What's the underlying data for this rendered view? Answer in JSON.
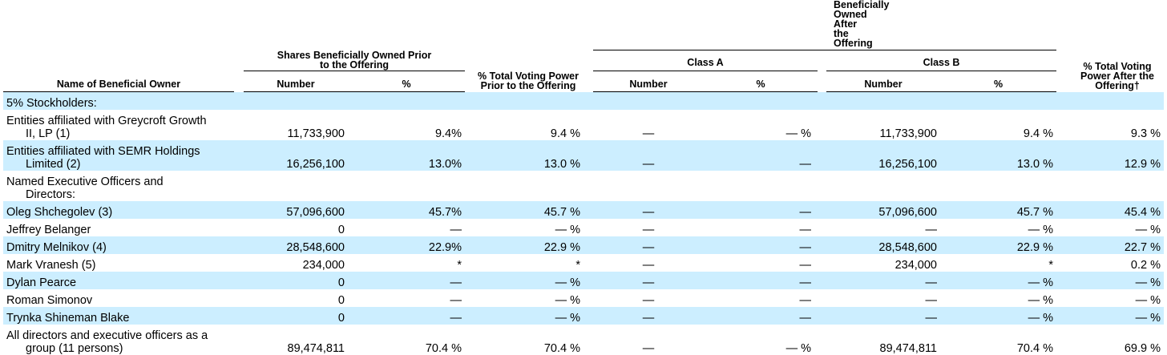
{
  "header": {
    "name_col": "Name of Beneficial Owner",
    "prior_group": "Shares Beneficially Owned Prior to the Offering",
    "prior_number": "Number",
    "prior_pct": "%",
    "voting_prior": "% Total Voting Power Prior to the Offering",
    "after_group": "Beneficially Owned After the Offering",
    "class_a": "Class A",
    "class_b": "Class B",
    "a_number": "Number",
    "a_pct": "%",
    "b_number": "Number",
    "b_pct": "%",
    "voting_after": "% Total Voting Power After the Offering†"
  },
  "rows": [
    {
      "name": "5% Stockholders:",
      "cells": [
        "",
        "",
        "",
        "",
        "",
        "",
        "",
        ""
      ]
    },
    {
      "name": "Entities affiliated with Greycroft Growth",
      "name2": "II, LP (1)",
      "cells": [
        "11,733,900",
        "9.4%",
        "9.4 %",
        "—",
        "— %",
        "11,733,900",
        "9.4 %",
        "9.3 %"
      ]
    },
    {
      "name": "Entities affiliated with SEMR Holdings",
      "name2": "Limited (2)",
      "cells": [
        "16,256,100",
        "13.0%",
        "13.0 %",
        "—",
        "—",
        "16,256,100",
        "13.0 %",
        "12.9 %"
      ]
    },
    {
      "name": "Named Executive Officers and",
      "name2": "Directors:",
      "cells": [
        "",
        "",
        "",
        "",
        "",
        "",
        "",
        ""
      ]
    },
    {
      "name": "Oleg Shchegolev (3)",
      "cells": [
        "57,096,600",
        "45.7%",
        "45.7 %",
        "—",
        "—",
        "57,096,600",
        "45.7 %",
        "45.4 %"
      ]
    },
    {
      "name": "Jeffrey Belanger",
      "cells": [
        "0",
        "—",
        "— %",
        "—",
        "—",
        "—",
        "— %",
        "— %"
      ]
    },
    {
      "name": "Dmitry Melnikov (4)",
      "cells": [
        "28,548,600",
        "22.9%",
        "22.9 %",
        "—",
        "—",
        "28,548,600",
        "22.9 %",
        "22.7 %"
      ]
    },
    {
      "name": "Mark Vranesh (5)",
      "cells": [
        "234,000",
        "*",
        "*",
        "—",
        "—",
        "234,000",
        "*",
        "0.2 %"
      ]
    },
    {
      "name": "Dylan Pearce",
      "cells": [
        "0",
        "—",
        "— %",
        "—",
        "—",
        "—",
        "— %",
        "— %"
      ]
    },
    {
      "name": "Roman Simonov",
      "cells": [
        "0",
        "—",
        "— %",
        "—",
        "—",
        "—",
        "— %",
        "— %"
      ]
    },
    {
      "name": "Trynka Shineman Blake",
      "cells": [
        "0",
        "—",
        "— %",
        "—",
        "—",
        "—",
        "— %",
        "— %"
      ]
    },
    {
      "name": "All directors and executive officers as a",
      "name2": "group (11 persons)",
      "cells": [
        "89,474,811",
        "70.4 %",
        "70.4 %",
        "—",
        "— %",
        "89,474,811",
        "70.4 %",
        "69.9 %"
      ]
    }
  ]
}
